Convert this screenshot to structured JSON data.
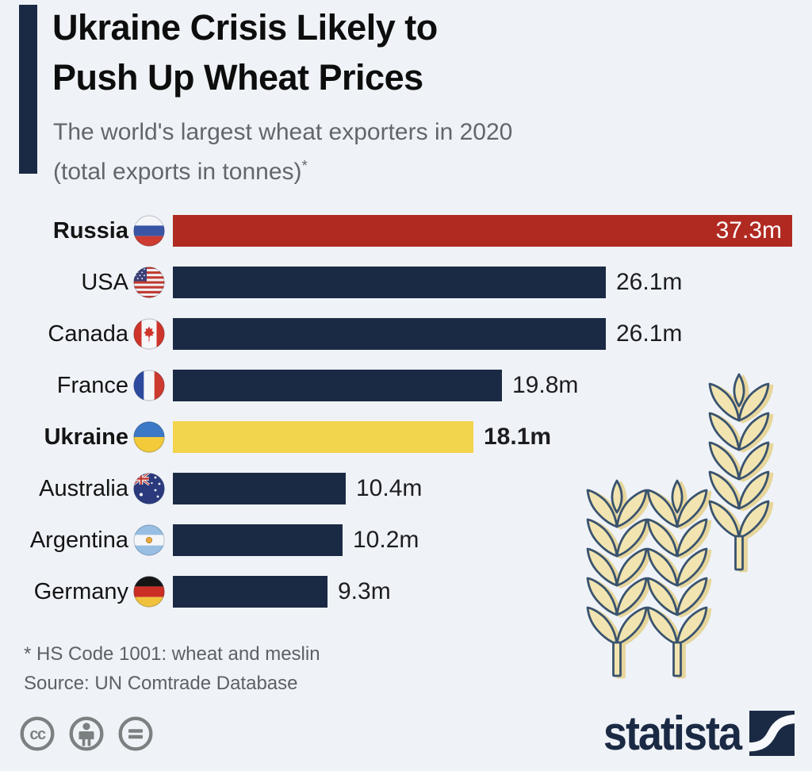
{
  "header": {
    "title_line1": "Ukraine Crisis Likely to",
    "title_line2": "Push Up Wheat Prices",
    "subtitle_line1": "The world's largest wheat exporters in 2020",
    "subtitle_line2": "(total exports in tonnes)",
    "footnote_marker": "*"
  },
  "chart_data": {
    "type": "bar",
    "orientation": "horizontal",
    "title": "Ukraine Crisis Likely to Push Up Wheat Prices",
    "subtitle": "The world's largest wheat exporters in 2020 (total exports in tonnes)*",
    "unit": "million tonnes",
    "categories": [
      "Russia",
      "USA",
      "Canada",
      "France",
      "Ukraine",
      "Australia",
      "Argentina",
      "Germany"
    ],
    "values": [
      37.3,
      26.1,
      26.1,
      19.8,
      18.1,
      10.4,
      10.2,
      9.3
    ],
    "value_labels": [
      "37.3m",
      "26.1m",
      "26.1m",
      "19.8m",
      "18.1m",
      "10.4m",
      "10.2m",
      "9.3m"
    ],
    "xlim": [
      0,
      37.3
    ],
    "grid": false,
    "legend": false,
    "bar_color_default": "#1b2a44",
    "highlighted": {
      "Russia": "#b02a21",
      "Ukraine": "#f2d44d"
    }
  },
  "rows": [
    {
      "country": "Russia",
      "flag": "russia",
      "value": 37.3,
      "value_label": "37.3m",
      "color": "#b02a21",
      "label_bold": true,
      "value_inside": true,
      "value_bold": false
    },
    {
      "country": "USA",
      "flag": "usa",
      "value": 26.1,
      "value_label": "26.1m",
      "color": "#1b2a44",
      "label_bold": false,
      "value_inside": false,
      "value_bold": false
    },
    {
      "country": "Canada",
      "flag": "canada",
      "value": 26.1,
      "value_label": "26.1m",
      "color": "#1b2a44",
      "label_bold": false,
      "value_inside": false,
      "value_bold": false
    },
    {
      "country": "France",
      "flag": "france",
      "value": 19.8,
      "value_label": "19.8m",
      "color": "#1b2a44",
      "label_bold": false,
      "value_inside": false,
      "value_bold": false
    },
    {
      "country": "Ukraine",
      "flag": "ukraine",
      "value": 18.1,
      "value_label": "18.1m",
      "color": "#f2d44d",
      "label_bold": true,
      "value_inside": false,
      "value_bold": true
    },
    {
      "country": "Australia",
      "flag": "australia",
      "value": 10.4,
      "value_label": "10.4m",
      "color": "#1b2a44",
      "label_bold": false,
      "value_inside": false,
      "value_bold": false
    },
    {
      "country": "Argentina",
      "flag": "argentina",
      "value": 10.2,
      "value_label": "10.2m",
      "color": "#1b2a44",
      "label_bold": false,
      "value_inside": false,
      "value_bold": false
    },
    {
      "country": "Germany",
      "flag": "germany",
      "value": 9.3,
      "value_label": "9.3m",
      "color": "#1b2a44",
      "label_bold": false,
      "value_inside": false,
      "value_bold": false
    }
  ],
  "footnotes": {
    "line1": "* HS Code 1001: wheat and meslin",
    "line2": "Source: UN Comtrade Database"
  },
  "license": {
    "icons": [
      "cc-icon",
      "attribution-icon",
      "equal-icon"
    ]
  },
  "branding": {
    "logo_text": "statista"
  },
  "colors": {
    "background": "#eff3f8",
    "accent_bar": "#1b2a44",
    "bar_default": "#1b2a44",
    "bar_russia": "#b02a21",
    "bar_ukraine": "#f2d44d",
    "title_text": "#0d0d0d",
    "subtitle_text": "#63676d",
    "value_text": "#1d1d21",
    "footnote_text": "#5d6165",
    "license_icon": "#7b8181",
    "logo": "#1b2a44",
    "wheat_fill": "#f1e4b0",
    "wheat_stroke": "#3a536e"
  }
}
